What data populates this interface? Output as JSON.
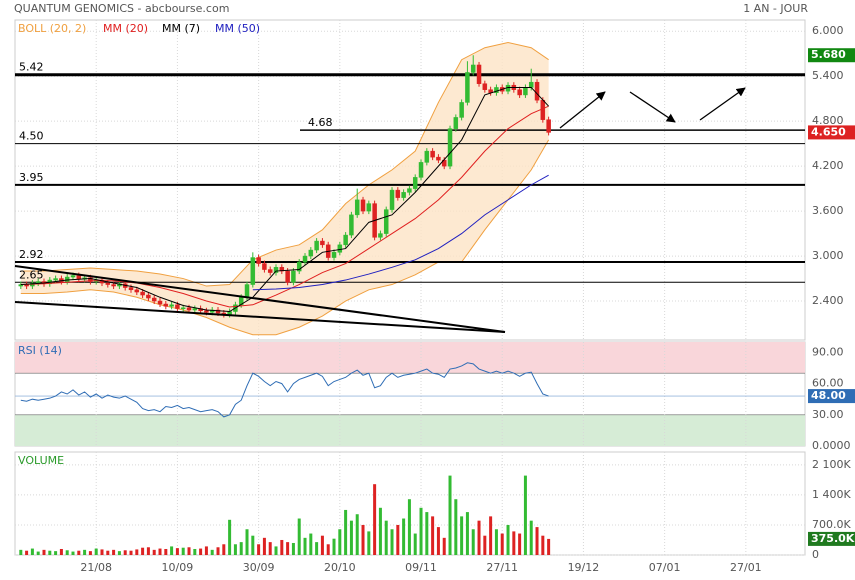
{
  "chart_data": [
    {
      "type": "candlestick",
      "title": "QUANTUM GENOMICS - abcbourse.com",
      "subtitle": "1 AN - JOUR",
      "up_color": "#33bb33",
      "down_color": "#dd2222",
      "xlim": [
        -1,
        135.2
      ],
      "ylim": [
        1.88,
        6.15
      ],
      "yticks": [
        {
          "value": 6,
          "label": "6.000"
        },
        {
          "value": 5.4,
          "label": "5.400"
        },
        {
          "value": 4.8,
          "label": "4.800"
        },
        {
          "value": 4.2,
          "label": "4.200"
        },
        {
          "value": 3.6,
          "label": "3.600"
        },
        {
          "value": 3,
          "label": "3.000"
        },
        {
          "value": 2.4,
          "label": "2.400"
        }
      ],
      "open": [
        2.6,
        2.62,
        2.6,
        2.64,
        2.66,
        2.63,
        2.68,
        2.7,
        2.66,
        2.72,
        2.74,
        2.69,
        2.71,
        2.66,
        2.68,
        2.64,
        2.62,
        2.6,
        2.63,
        2.58,
        2.55,
        2.52,
        2.48,
        2.44,
        2.4,
        2.36,
        2.33,
        2.35,
        2.3,
        2.31,
        2.28,
        2.3,
        2.27,
        2.25,
        2.28,
        2.24,
        2.22,
        2.26,
        2.35,
        2.45,
        2.62,
        2.98,
        2.9,
        2.82,
        2.78,
        2.85,
        2.8,
        2.65,
        2.8,
        2.92,
        3.0,
        3.08,
        3.2,
        3.15,
        2.98,
        3.05,
        3.15,
        3.28,
        3.55,
        3.75,
        3.6,
        3.7,
        3.25,
        3.3,
        3.62,
        3.88,
        3.78,
        3.85,
        3.9,
        4.05,
        4.25,
        4.4,
        4.32,
        4.28,
        4.2,
        4.7,
        4.85,
        5.05,
        5.45,
        5.55,
        5.3,
        5.22,
        5.18,
        5.25,
        5.2,
        5.28,
        5.22,
        5.15,
        5.25,
        5.32,
        5.08,
        4.82
      ],
      "high": [
        2.66,
        2.66,
        2.68,
        2.7,
        2.7,
        2.72,
        2.74,
        2.74,
        2.76,
        2.78,
        2.78,
        2.75,
        2.75,
        2.72,
        2.72,
        2.68,
        2.66,
        2.67,
        2.67,
        2.62,
        2.59,
        2.56,
        2.52,
        2.48,
        2.44,
        2.4,
        2.39,
        2.39,
        2.35,
        2.35,
        2.34,
        2.34,
        2.31,
        2.32,
        2.32,
        2.28,
        2.3,
        2.39,
        2.49,
        2.66,
        3.05,
        3.02,
        2.94,
        2.86,
        2.89,
        2.89,
        2.84,
        2.84,
        2.96,
        3.04,
        3.12,
        3.24,
        3.24,
        3.19,
        3.09,
        3.19,
        3.32,
        3.59,
        3.9,
        3.79,
        3.74,
        3.74,
        3.34,
        3.66,
        3.92,
        3.92,
        3.89,
        3.94,
        4.09,
        4.29,
        4.44,
        4.44,
        4.36,
        4.32,
        4.74,
        4.89,
        5.09,
        5.6,
        5.68,
        5.59,
        5.34,
        5.26,
        5.29,
        5.29,
        5.32,
        5.32,
        5.26,
        5.29,
        5.5,
        5.36,
        5.12,
        4.86
      ],
      "low": [
        2.56,
        2.56,
        2.56,
        2.6,
        2.59,
        2.59,
        2.64,
        2.62,
        2.62,
        2.68,
        2.65,
        2.65,
        2.62,
        2.62,
        2.6,
        2.58,
        2.56,
        2.56,
        2.54,
        2.51,
        2.48,
        2.44,
        2.4,
        2.36,
        2.32,
        2.29,
        2.29,
        2.26,
        2.26,
        2.24,
        2.24,
        2.23,
        2.21,
        2.21,
        2.2,
        2.18,
        2.18,
        2.22,
        2.31,
        2.41,
        2.58,
        2.86,
        2.78,
        2.74,
        2.74,
        2.76,
        2.61,
        2.61,
        2.76,
        2.88,
        2.96,
        3.04,
        3.11,
        2.94,
        2.94,
        3.01,
        3.11,
        3.24,
        3.51,
        3.56,
        3.56,
        3.21,
        3.21,
        3.26,
        3.58,
        3.74,
        3.74,
        3.81,
        3.86,
        4.01,
        4.21,
        4.28,
        4.24,
        4.16,
        4.16,
        4.66,
        4.81,
        5.01,
        5.41,
        5.26,
        5.18,
        5.14,
        5.14,
        5.16,
        5.16,
        5.18,
        5.11,
        5.11,
        5.21,
        5.04,
        4.78,
        4.61
      ],
      "close": [
        2.62,
        2.6,
        2.64,
        2.66,
        2.63,
        2.68,
        2.7,
        2.66,
        2.72,
        2.74,
        2.69,
        2.71,
        2.66,
        2.68,
        2.64,
        2.62,
        2.6,
        2.63,
        2.58,
        2.55,
        2.52,
        2.48,
        2.44,
        2.4,
        2.36,
        2.33,
        2.35,
        2.3,
        2.31,
        2.28,
        2.3,
        2.27,
        2.25,
        2.28,
        2.24,
        2.22,
        2.26,
        2.35,
        2.45,
        2.62,
        2.98,
        2.9,
        2.82,
        2.78,
        2.85,
        2.8,
        2.65,
        2.8,
        2.92,
        3.0,
        3.08,
        3.2,
        3.15,
        2.98,
        3.05,
        3.15,
        3.28,
        3.55,
        3.75,
        3.6,
        3.7,
        3.25,
        3.3,
        3.62,
        3.88,
        3.78,
        3.85,
        3.9,
        4.05,
        4.25,
        4.4,
        4.32,
        4.28,
        4.2,
        4.7,
        4.85,
        5.05,
        5.45,
        5.55,
        5.3,
        5.22,
        5.18,
        5.25,
        5.2,
        5.28,
        5.22,
        5.15,
        5.25,
        5.32,
        5.08,
        4.82,
        4.65
      ],
      "series": [
        {
          "name": "BOLL (20, 2)",
          "color": "#f0a040",
          "x": [
            0,
            4,
            8,
            12,
            16,
            20,
            24,
            28,
            32,
            36,
            40,
            44,
            48,
            52,
            56,
            60,
            64,
            68,
            72,
            76,
            80,
            84,
            88,
            91
          ],
          "upper": [
            2.8,
            2.8,
            2.82,
            2.84,
            2.82,
            2.8,
            2.76,
            2.7,
            2.6,
            2.62,
            2.95,
            3.08,
            3.15,
            3.35,
            3.7,
            3.95,
            4.15,
            4.4,
            5.05,
            5.62,
            5.78,
            5.85,
            5.78,
            5.62
          ],
          "lower": [
            2.5,
            2.5,
            2.52,
            2.55,
            2.52,
            2.45,
            2.35,
            2.28,
            2.18,
            2.05,
            1.95,
            1.95,
            2.05,
            2.2,
            2.4,
            2.55,
            2.62,
            2.75,
            2.92,
            2.92,
            3.35,
            3.75,
            4.15,
            4.55
          ]
        },
        {
          "name": "MM (20)",
          "color": "#e02020",
          "x": [
            0,
            4,
            8,
            12,
            16,
            20,
            24,
            28,
            32,
            36,
            40,
            44,
            48,
            52,
            56,
            60,
            64,
            68,
            72,
            76,
            80,
            84,
            88,
            91
          ],
          "values": [
            2.62,
            2.63,
            2.65,
            2.67,
            2.67,
            2.64,
            2.58,
            2.5,
            2.4,
            2.32,
            2.35,
            2.48,
            2.62,
            2.78,
            2.9,
            3.1,
            3.3,
            3.5,
            3.75,
            4.05,
            4.4,
            4.7,
            4.9,
            5.0
          ]
        },
        {
          "name": "MM (7)",
          "color": "#000000",
          "x": [
            0,
            4,
            8,
            12,
            16,
            20,
            24,
            28,
            32,
            36,
            40,
            44,
            48,
            52,
            56,
            60,
            64,
            68,
            72,
            76,
            80,
            84,
            88,
            91
          ],
          "values": [
            2.62,
            2.64,
            2.68,
            2.7,
            2.64,
            2.58,
            2.45,
            2.34,
            2.28,
            2.26,
            2.45,
            2.8,
            2.82,
            3.05,
            3.1,
            3.45,
            3.55,
            3.85,
            4.2,
            4.55,
            5.15,
            5.25,
            5.25,
            5.0
          ]
        },
        {
          "name": "MM (50)",
          "color": "#2020c0",
          "x": [
            40,
            44,
            48,
            52,
            56,
            60,
            64,
            68,
            72,
            76,
            80,
            84,
            88,
            91
          ],
          "values": [
            2.55,
            2.56,
            2.58,
            2.62,
            2.68,
            2.76,
            2.85,
            2.95,
            3.1,
            3.3,
            3.55,
            3.75,
            3.95,
            4.08
          ]
        }
      ],
      "levels": [
        5.42,
        4.68,
        {
          "value": 4.5,
          "label": "4.50"
        },
        3.95,
        2.92,
        2.65
      ],
      "markers": [
        {
          "value": 5.68,
          "label": "5.680",
          "color": "#118811"
        },
        {
          "value": 4.65,
          "label": "4.650",
          "color": "#dd2222"
        }
      ]
    },
    {
      "type": "line",
      "title": "RSI (14)",
      "color": "#2f6db5",
      "xlim": [
        -1,
        135.2
      ],
      "ylim": [
        0,
        100
      ],
      "yticks": [
        {
          "value": 90,
          "label": "90.00"
        },
        {
          "value": 60,
          "label": "60.00"
        },
        {
          "value": 30,
          "label": "30.00"
        },
        {
          "value": 0,
          "label": "0.0000"
        }
      ],
      "zones": [
        {
          "from": 70,
          "to": 100,
          "color": "#f9d6da"
        },
        {
          "from": 0,
          "to": 30,
          "color": "#d6ecd6"
        }
      ],
      "values": [
        44,
        43,
        45,
        44,
        45,
        46,
        48,
        52,
        50,
        54,
        49,
        52,
        47,
        50,
        46,
        49,
        47,
        46,
        48,
        45,
        42,
        36,
        34,
        35,
        33,
        38,
        37,
        39,
        36,
        37,
        35,
        33,
        34,
        35,
        33,
        28,
        30,
        40,
        44,
        58,
        70,
        67,
        62,
        58,
        62,
        60,
        52,
        60,
        64,
        66,
        68,
        70,
        67,
        58,
        62,
        64,
        66,
        70,
        73,
        68,
        70,
        56,
        58,
        66,
        70,
        66,
        68,
        69,
        70,
        72,
        74,
        70,
        69,
        66,
        74,
        75,
        77,
        80,
        79,
        74,
        72,
        70,
        72,
        70,
        72,
        70,
        67,
        70,
        71,
        60,
        50,
        48
      ],
      "marker": {
        "value": 48,
        "label": "48.00",
        "color": "#2f6db5"
      }
    },
    {
      "type": "bar",
      "title": "VOLUME",
      "up_color": "#33bb33",
      "down_color": "#dd2222",
      "xlim": [
        -1,
        135.2
      ],
      "ylim": [
        0,
        2400000
      ],
      "yticks": [
        {
          "value": 2100000,
          "label": "2 100K"
        },
        {
          "value": 1400000,
          "label": "1 400K"
        },
        {
          "value": 700000,
          "label": "700.0K"
        },
        0
      ],
      "xticks": [
        {
          "value": 13,
          "label": "21/08"
        },
        {
          "value": 27,
          "label": "10/09"
        },
        {
          "value": 41,
          "label": "30/09"
        },
        {
          "value": 55,
          "label": "20/10"
        },
        {
          "value": 69,
          "label": "09/11"
        },
        {
          "value": 83,
          "label": "27/11"
        },
        {
          "value": 97,
          "label": "19/12"
        },
        {
          "value": 111,
          "label": "07/01"
        },
        {
          "value": 125,
          "label": "27/01"
        }
      ],
      "values": [
        120000,
        100000,
        150000,
        80000,
        120000,
        100000,
        90000,
        140000,
        110000,
        80000,
        100000,
        120000,
        90000,
        150000,
        130000,
        100000,
        120000,
        90000,
        110000,
        100000,
        130000,
        170000,
        180000,
        120000,
        150000,
        140000,
        200000,
        160000,
        170000,
        180000,
        140000,
        150000,
        200000,
        120000,
        180000,
        250000,
        820000,
        250000,
        300000,
        600000,
        450000,
        250000,
        400000,
        300000,
        200000,
        350000,
        300000,
        280000,
        850000,
        400000,
        500000,
        300000,
        450000,
        250000,
        380000,
        600000,
        1050000,
        800000,
        950000,
        700000,
        550000,
        1650000,
        1100000,
        800000,
        600000,
        700000,
        850000,
        1300000,
        500000,
        1100000,
        1000000,
        900000,
        650000,
        400000,
        1850000,
        1300000,
        900000,
        1000000,
        600000,
        800000,
        450000,
        900000,
        600000,
        500000,
        700000,
        550000,
        500000,
        1850000,
        800000,
        650000,
        450000,
        375000
      ],
      "marker": {
        "value": 375000,
        "label": "375.0K",
        "color": "#1f7a1f"
      }
    }
  ]
}
